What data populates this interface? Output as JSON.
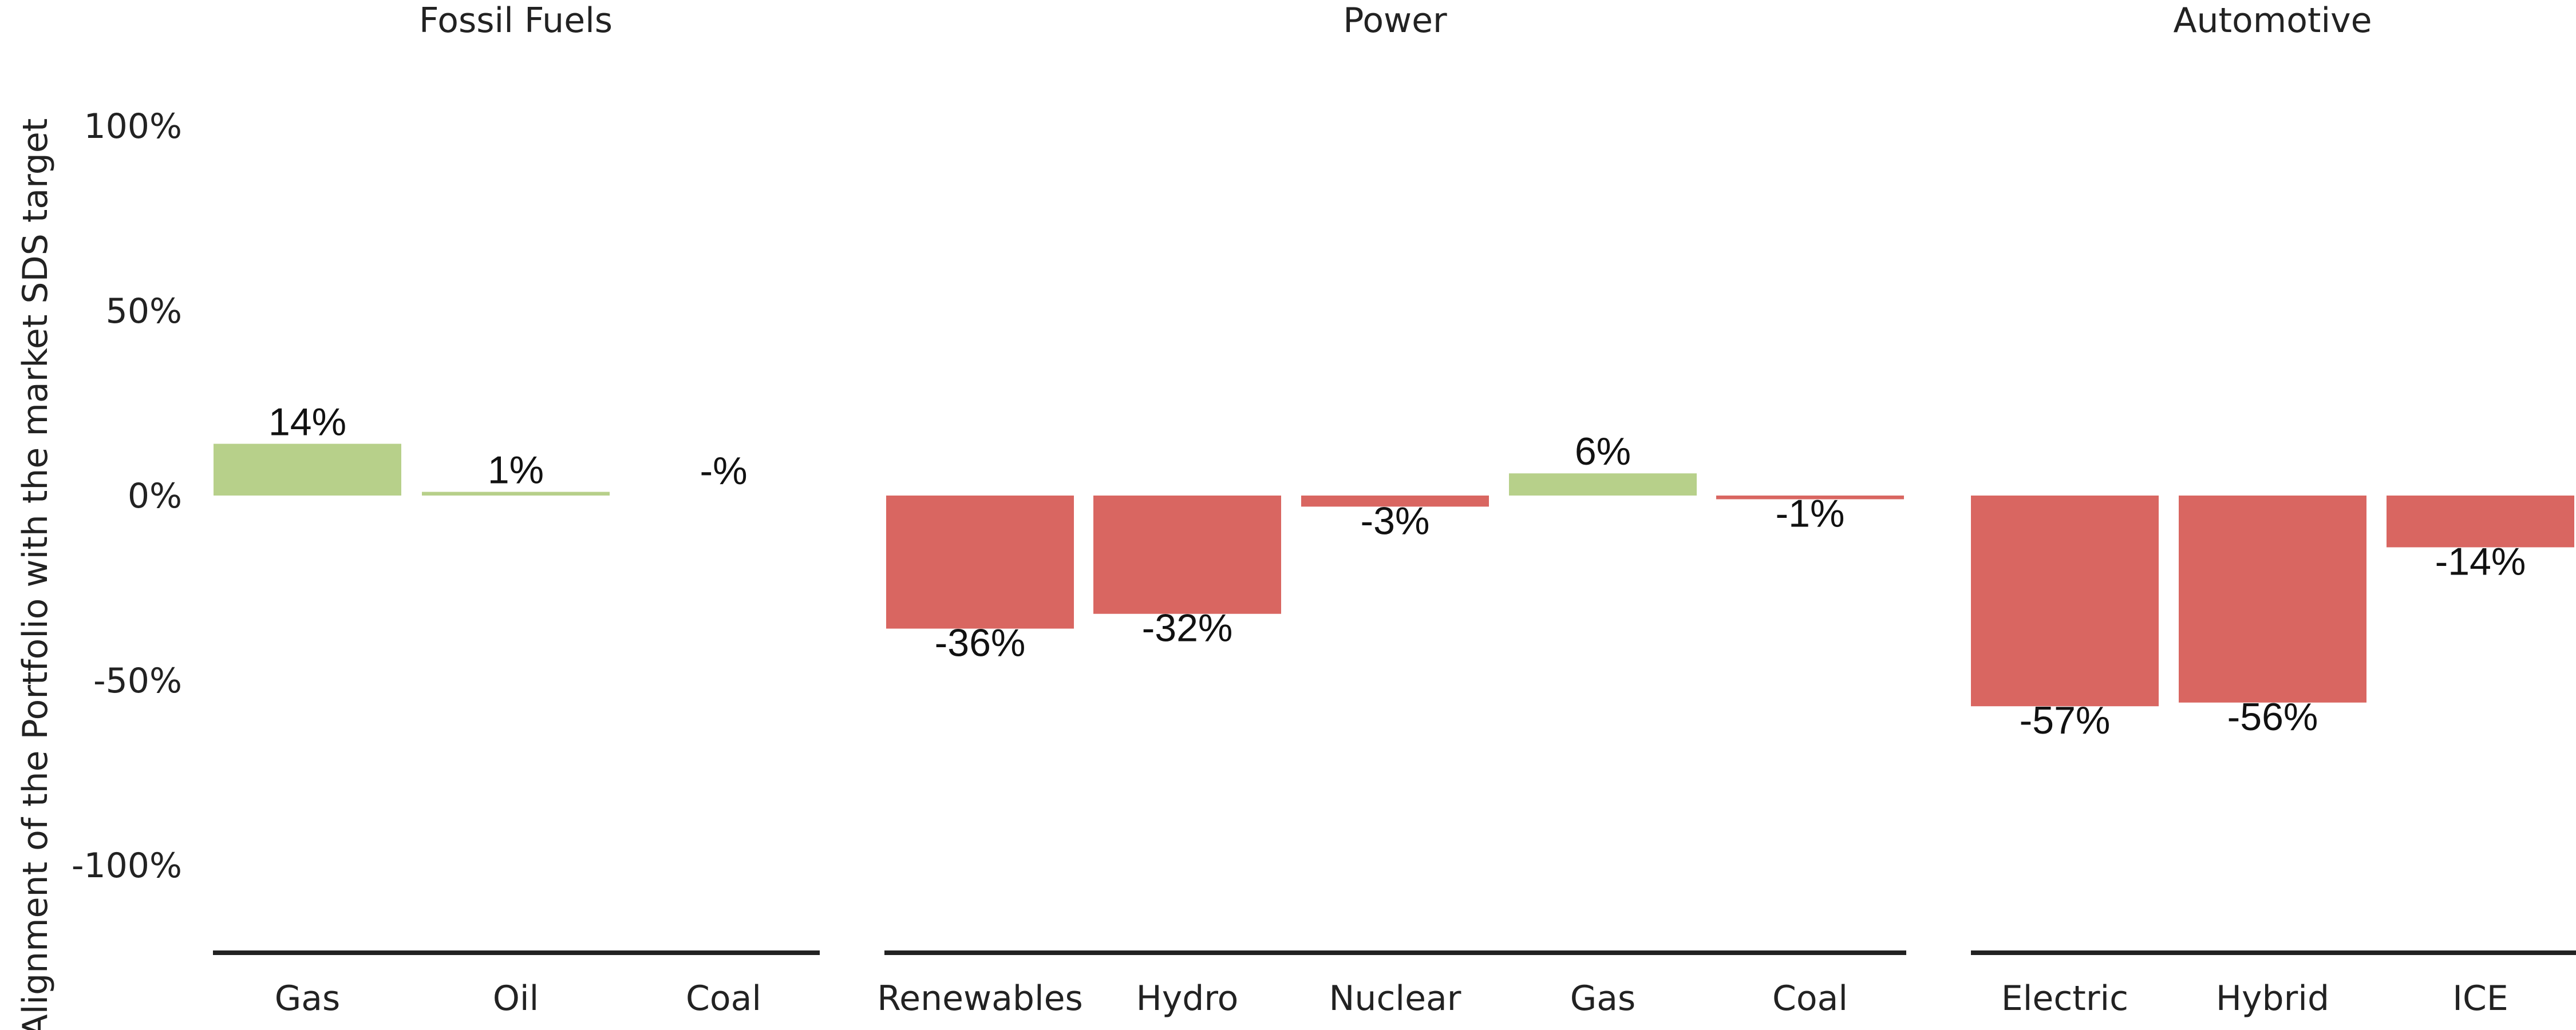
{
  "chart_data": {
    "type": "bar",
    "ylabel": "Alignment of the Portfolio with the market SDS target",
    "ylim": [
      -125,
      125
    ],
    "yticks": [
      100,
      50,
      0,
      -50,
      -100
    ],
    "ytick_labels": [
      "100%",
      "50%",
      "0%",
      "-50%",
      "-100%"
    ],
    "grid": false,
    "colors": {
      "positive": "#b7d08a",
      "negative": "#d96661",
      "axis": "#222222"
    },
    "panels": [
      {
        "title": "Fossil Fuels",
        "categories": [
          "Gas",
          "Oil",
          "Coal"
        ],
        "values": [
          14,
          1,
          null
        ],
        "labels": [
          "14%",
          "1%",
          "-%"
        ]
      },
      {
        "title": "Power",
        "categories": [
          "Renewables",
          "Hydro",
          "Nuclear",
          "Gas",
          "Coal"
        ],
        "values": [
          -36,
          -32,
          -3,
          6,
          -1
        ],
        "labels": [
          "-36%",
          "-32%",
          "-3%",
          "6%",
          "-1%"
        ]
      },
      {
        "title": "Automotive",
        "categories": [
          "Electric",
          "Hybrid",
          "ICE"
        ],
        "values": [
          -57,
          -56,
          -14
        ],
        "labels": [
          "-57%",
          "-56%",
          "-14%"
        ]
      }
    ]
  }
}
